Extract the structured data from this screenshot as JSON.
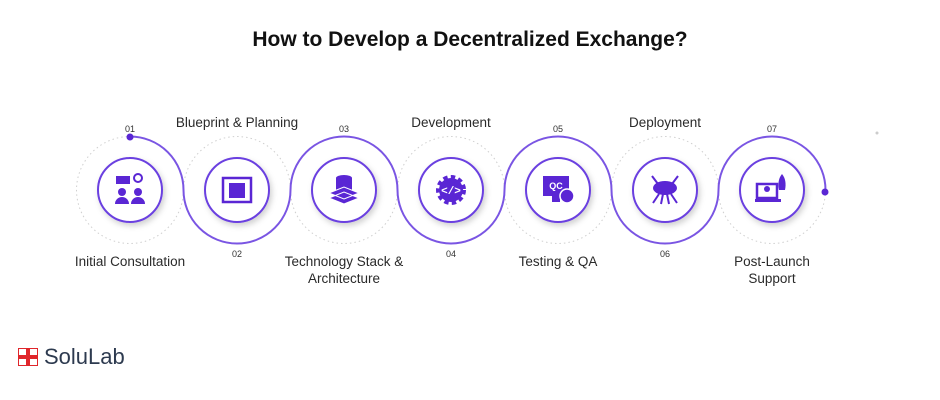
{
  "title": "How to Develop a Decentralized Exchange?",
  "colors": {
    "accent": "#5a26d4",
    "line": "#7a55e3",
    "dotted": "#c9c9c9",
    "logo_red": "#e0262b",
    "logo_text": "#2d3a4f"
  },
  "steps": [
    {
      "number": "01",
      "label": "Initial Consultation",
      "icon": "consultation-icon"
    },
    {
      "number": "02",
      "label": "Blueprint & Planning",
      "icon": "blueprint-icon"
    },
    {
      "number": "03",
      "label": "Technology Stack & Architecture",
      "icon": "database-stack-icon"
    },
    {
      "number": "04",
      "label": "Development",
      "icon": "code-gear-icon"
    },
    {
      "number": "05",
      "label": "Testing & QA",
      "icon": "qc-monitor-icon"
    },
    {
      "number": "06",
      "label": "Deployment",
      "icon": "cloud-network-icon"
    },
    {
      "number": "07",
      "label": "Post-Launch Support",
      "icon": "rocket-laptop-icon"
    }
  ],
  "logo": {
    "text": "SoluLab"
  }
}
